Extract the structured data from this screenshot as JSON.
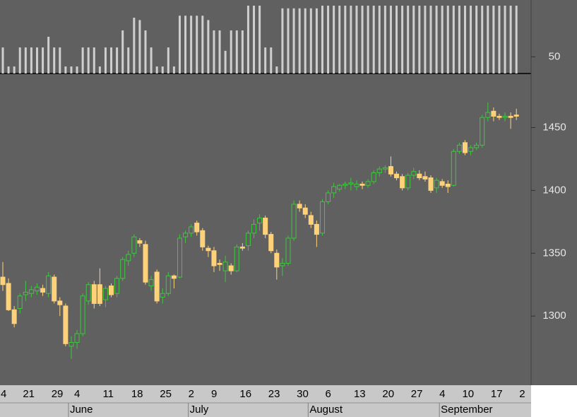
{
  "chart_data": [
    {
      "type": "candlestick",
      "categories": [
        "4",
        null,
        null,
        null,
        null,
        "21",
        null,
        null,
        null,
        null,
        "29",
        null,
        null,
        null,
        "4",
        null,
        null,
        null,
        null,
        "11",
        null,
        null,
        null,
        null,
        "18",
        null,
        null,
        null,
        null,
        "25",
        null,
        null,
        null,
        null,
        "2",
        null,
        null,
        null,
        "9",
        null,
        null,
        null,
        null,
        "16",
        null,
        null,
        null,
        null,
        "23",
        null,
        null,
        null,
        null,
        "30",
        null,
        null,
        null,
        null,
        "6",
        null,
        null,
        null,
        null,
        "13",
        null,
        null,
        null,
        null,
        "20",
        null,
        null,
        null,
        null,
        "27",
        null,
        null,
        null,
        null,
        "4",
        null,
        null,
        null,
        "10",
        null,
        null,
        null,
        null,
        "17",
        null,
        null,
        null,
        null,
        "2"
      ],
      "months": [
        null,
        null,
        null,
        null,
        null,
        null,
        null,
        null,
        null,
        null,
        null,
        null,
        null,
        "June",
        null,
        null,
        null,
        null,
        null,
        null,
        null,
        null,
        null,
        null,
        null,
        null,
        null,
        null,
        null,
        null,
        null,
        null,
        null,
        null,
        "July",
        null,
        null,
        null,
        null,
        null,
        null,
        null,
        null,
        null,
        null,
        null,
        null,
        null,
        null,
        null,
        null,
        null,
        null,
        null,
        null,
        "August",
        null,
        null,
        null,
        null,
        null,
        null,
        null,
        null,
        null,
        null,
        null,
        null,
        null,
        null,
        null,
        null,
        null,
        null,
        null,
        null,
        null,
        null,
        "September",
        null,
        null,
        null,
        null,
        null,
        null,
        null,
        null,
        null,
        null,
        null,
        null,
        null,
        null
      ],
      "open": [
        null,
        1331,
        1326,
        1305,
        1306,
        1317,
        1318,
        1320,
        1322,
        1318,
        1331,
        1312,
        1308,
        1276,
        1279,
        1286,
        1312,
        1325,
        1325,
        1313,
        1324,
        1318,
        1330,
        1344,
        1350,
        1360,
        1357,
        1324,
        1335,
        1315,
        1318,
        1332,
        1331,
        1363,
        1366,
        1374,
        1368,
        1354,
        1352,
        1342,
        1336,
        1340,
        1336,
        1355,
        1356,
        1366,
        1374,
        1378,
        1365,
        1350,
        1340,
        1342,
        1362,
        1389,
        1386,
        1380,
        1373,
        1366,
        1391,
        1398,
        1401,
        1404,
        1405,
        1403,
        1405,
        1404,
        1407,
        1414,
        1417,
        1419,
        1413,
        1411,
        1402,
        1412,
        1413,
        1411,
        1410,
        1402,
        1407,
        1405,
        1404,
        1431,
        1438,
        1431,
        1434,
        1436,
        1458,
        1463,
        1459,
        1458,
        1459,
        1460,
        null
      ],
      "high": [
        null,
        1343,
        1330,
        1308,
        1318,
        1328,
        1324,
        1326,
        1325,
        1335,
        1333,
        1315,
        1310,
        1284,
        1289,
        1318,
        1327,
        1328,
        1338,
        1324,
        1326,
        1332,
        1347,
        1352,
        1365,
        1362,
        1360,
        1332,
        1337,
        1322,
        1335,
        1333,
        1365,
        1368,
        1373,
        1376,
        1370,
        1356,
        1355,
        1345,
        1348,
        1342,
        1357,
        1358,
        1368,
        1377,
        1381,
        1380,
        1367,
        1353,
        1346,
        1364,
        1392,
        1392,
        1389,
        1383,
        1376,
        1393,
        1400,
        1406,
        1405,
        1407,
        1410,
        1408,
        1407,
        1409,
        1416,
        1419,
        1420,
        1427,
        1415,
        1413,
        1414,
        1418,
        1416,
        1415,
        1412,
        1410,
        1409,
        1408,
        1433,
        1438,
        1440,
        1436,
        1438,
        1460,
        1470,
        1466,
        1461,
        1462,
        1462,
        1465,
        null
      ],
      "low": [
        null,
        1320,
        1304,
        1291,
        1302,
        1312,
        1315,
        1317,
        1316,
        1315,
        1310,
        1300,
        1276,
        1266,
        1274,
        1284,
        1309,
        1306,
        1308,
        1307,
        1315,
        1315,
        1328,
        1340,
        1347,
        1355,
        1325,
        1320,
        1310,
        1310,
        1316,
        1322,
        1330,
        1358,
        1363,
        1364,
        1352,
        1347,
        1335,
        1336,
        1327,
        1333,
        1335,
        1352,
        1352,
        1362,
        1368,
        1362,
        1350,
        1329,
        1332,
        1340,
        1360,
        1383,
        1378,
        1370,
        1355,
        1364,
        1389,
        1394,
        1399,
        1401,
        1400,
        1400,
        1401,
        1402,
        1405,
        1411,
        1414,
        1411,
        1408,
        1400,
        1400,
        1409,
        1408,
        1407,
        1398,
        1398,
        1402,
        1398,
        1403,
        1429,
        1428,
        1428,
        1432,
        1434,
        1455,
        1455,
        1456,
        1455,
        1449,
        1456,
        null
      ],
      "close": [
        null,
        1325,
        1305,
        1294,
        1316,
        1319,
        1321,
        1323,
        1319,
        1332,
        1312,
        1309,
        1278,
        1279,
        1286,
        1316,
        1325,
        1310,
        1310,
        1322,
        1317,
        1330,
        1345,
        1349,
        1363,
        1358,
        1327,
        1329,
        1312,
        1318,
        1332,
        1330,
        1362,
        1366,
        1371,
        1367,
        1355,
        1352,
        1340,
        1341,
        1343,
        1336,
        1355,
        1354,
        1366,
        1373,
        1378,
        1365,
        1352,
        1339,
        1342,
        1362,
        1389,
        1386,
        1381,
        1373,
        1365,
        1391,
        1398,
        1403,
        1404,
        1405,
        1406,
        1405,
        1404,
        1407,
        1414,
        1417,
        1418,
        1413,
        1410,
        1402,
        1412,
        1415,
        1410,
        1409,
        1400,
        1408,
        1404,
        1403,
        1431,
        1436,
        1430,
        1434,
        1436,
        1458,
        1462,
        1459,
        1458,
        1459,
        1458,
        1459,
        null
      ],
      "up_color": "#3cc83c",
      "down_color": "#ffd27a",
      "ylim": [
        1245,
        1493
      ],
      "yticks": [
        1300,
        1350,
        1400,
        1450
      ]
    },
    {
      "type": "bar",
      "values": [
        null,
        78,
        21,
        21,
        78,
        78,
        78,
        78,
        78,
        110,
        78,
        78,
        21,
        21,
        21,
        78,
        78,
        78,
        21,
        78,
        78,
        78,
        129,
        78,
        167,
        160,
        129,
        78,
        21,
        21,
        78,
        21,
        173,
        173,
        173,
        173,
        173,
        160,
        129,
        129,
        68,
        129,
        129,
        129,
        203,
        203,
        203,
        78,
        78,
        21,
        195,
        195,
        195,
        195,
        195,
        195,
        195,
        203,
        203,
        203,
        203,
        203,
        203,
        203,
        203,
        203,
        203,
        203,
        203,
        203,
        203,
        203,
        203,
        203,
        203,
        203,
        203,
        203,
        203,
        203,
        203,
        203,
        203,
        203,
        203,
        203,
        203,
        203,
        203,
        203,
        203,
        203,
        null
      ],
      "color": "#cfcfcf",
      "ylim": [
        0,
        220
      ],
      "yticks": [
        50
      ]
    }
  ]
}
